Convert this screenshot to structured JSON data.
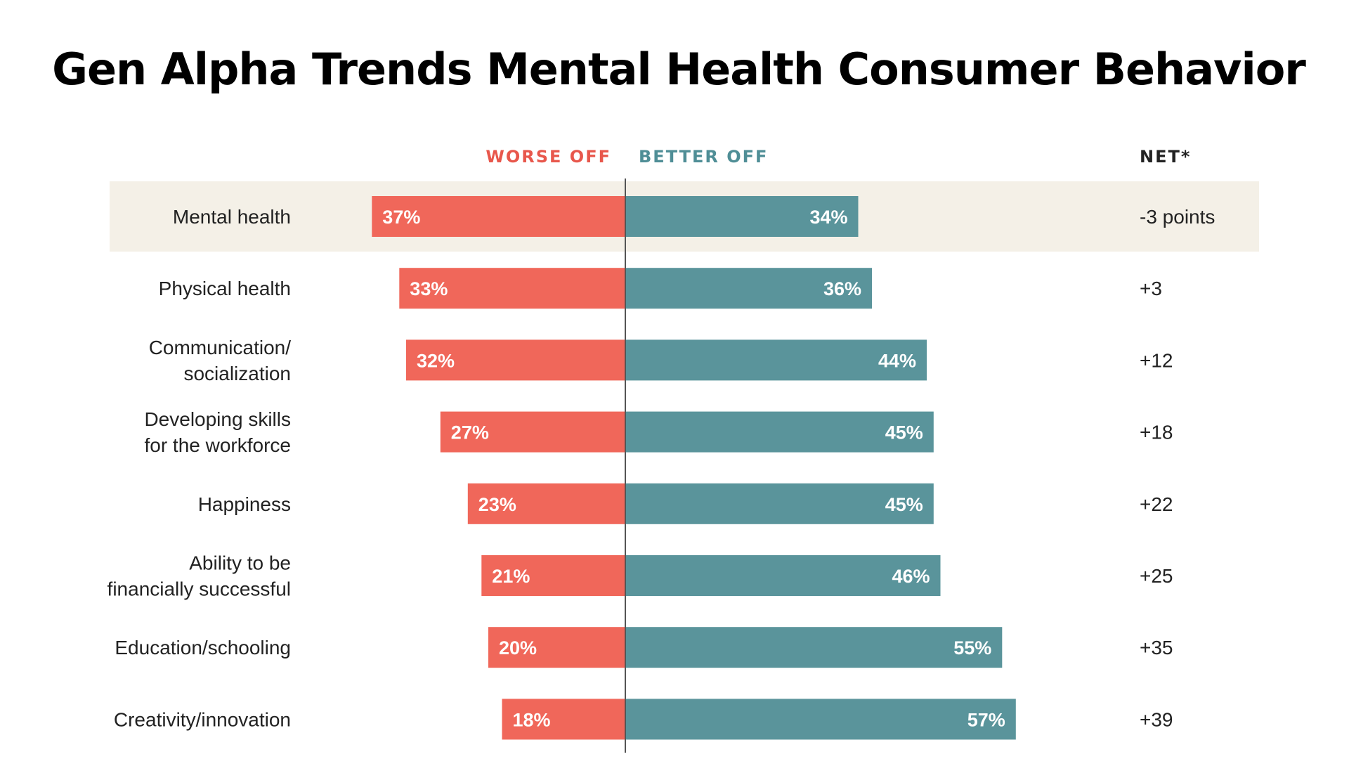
{
  "chart_data": {
    "type": "bar",
    "title": "Gen Alpha Trends Mental Health Consumer Behavior",
    "headers": {
      "worse": "WORSE OFF",
      "better": "BETTER OFF",
      "net": "NET*"
    },
    "categories": [
      [
        "Mental health"
      ],
      [
        "Physical health"
      ],
      [
        "Communication/",
        "socialization"
      ],
      [
        "Developing skills",
        "for the workforce"
      ],
      [
        "Happiness"
      ],
      [
        "Ability to be",
        "financially successful"
      ],
      [
        "Education/schooling"
      ],
      [
        "Creativity/innovation"
      ]
    ],
    "series": [
      {
        "name": "WORSE OFF",
        "values": [
          37,
          33,
          32,
          27,
          23,
          21,
          20,
          18
        ]
      },
      {
        "name": "BETTER OFF",
        "values": [
          34,
          36,
          44,
          45,
          45,
          46,
          55,
          57
        ]
      }
    ],
    "value_labels": {
      "worse": [
        "37%",
        "33%",
        "32%",
        "27%",
        "23%",
        "21%",
        "20%",
        "18%"
      ],
      "better": [
        "34%",
        "36%",
        "44%",
        "45%",
        "45%",
        "46%",
        "55%",
        "57%"
      ]
    },
    "net": [
      "-3 points",
      "+3",
      "+12",
      "+18",
      "+22",
      "+25",
      "+35",
      "+39"
    ],
    "highlighted_index": 0,
    "colors": {
      "worse": "#f0675a",
      "better": "#5a949b",
      "worse_header": "#e8574c",
      "better_header": "#4f8e96",
      "highlight_band": "#f4f0e7",
      "axis": "#555555",
      "net_header": "#222222"
    }
  }
}
